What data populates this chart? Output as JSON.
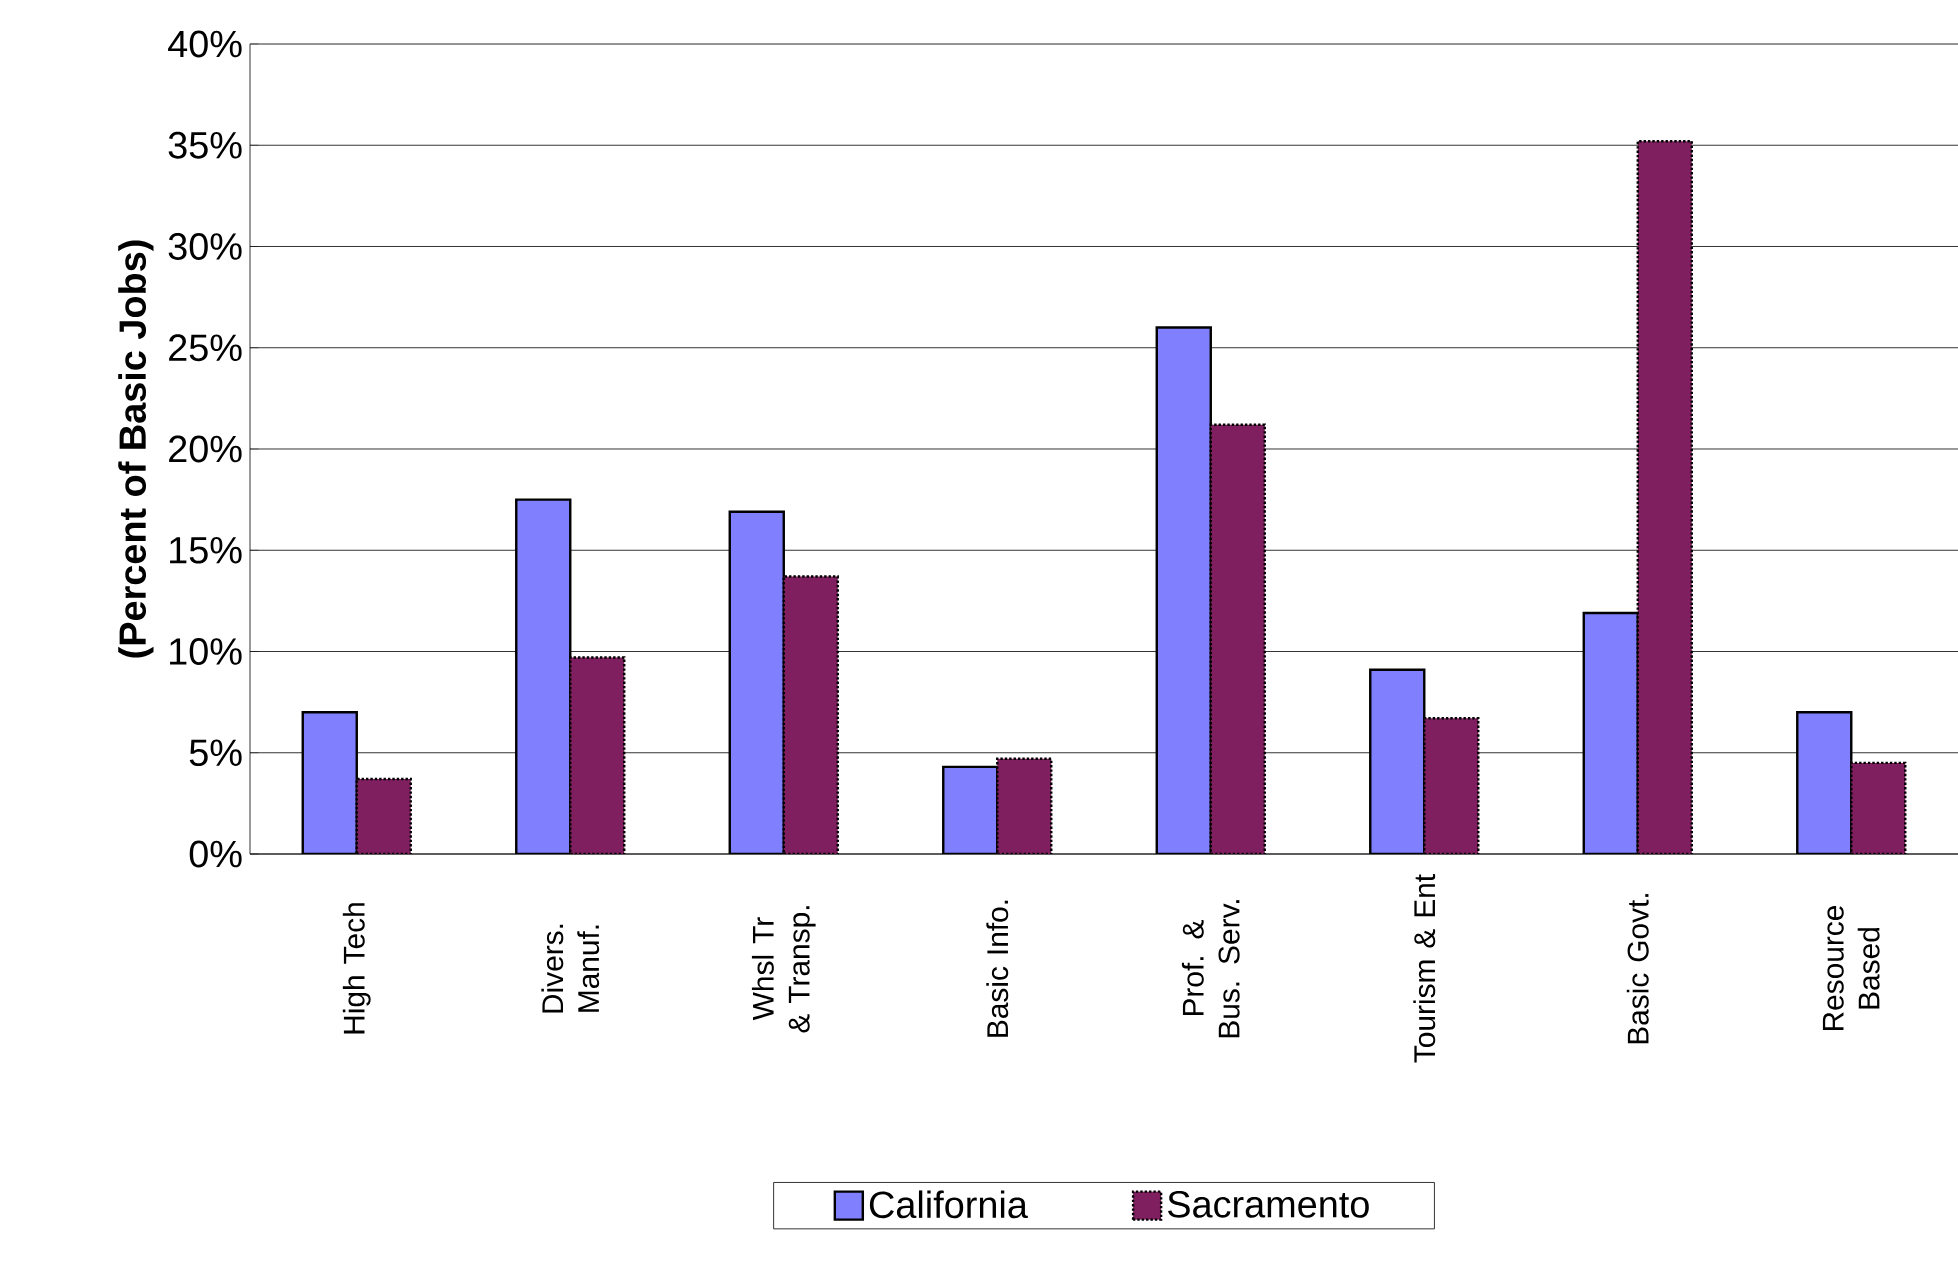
{
  "chart_data": {
    "type": "bar",
    "ylabel": "(Percent of Basic Jobs)",
    "categories": [
      "High Tech",
      "Divers. Manuf.",
      "Whsl Tr & Transp.",
      "Basic Info.",
      "Prof. & Bus. Serv.",
      "Tourism & Ent",
      "Basic Govt.",
      "Resource Based"
    ],
    "series": [
      {
        "name": "California",
        "color": "#8080ff",
        "values": [
          7.0,
          17.5,
          16.9,
          4.3,
          26.0,
          9.1,
          11.9,
          7.0
        ]
      },
      {
        "name": "Sacramento",
        "color": "#7f1f5f",
        "line_style": "dotted",
        "values": [
          3.7,
          9.7,
          13.7,
          4.7,
          21.2,
          6.7,
          35.2,
          4.5
        ]
      }
    ],
    "ylim": [
      0,
      40
    ],
    "yticks": [
      {
        "value": 0,
        "label": "0%"
      },
      {
        "value": 5,
        "label": "5%"
      },
      {
        "value": 10,
        "label": "10%"
      },
      {
        "value": 15,
        "label": "15%"
      },
      {
        "value": 20,
        "label": "20%"
      },
      {
        "value": 25,
        "label": "25%"
      },
      {
        "value": 30,
        "label": "30%"
      },
      {
        "value": 35,
        "label": "35%"
      },
      {
        "value": 40,
        "label": "40%"
      }
    ],
    "grid": "y",
    "legend": "bottom"
  }
}
